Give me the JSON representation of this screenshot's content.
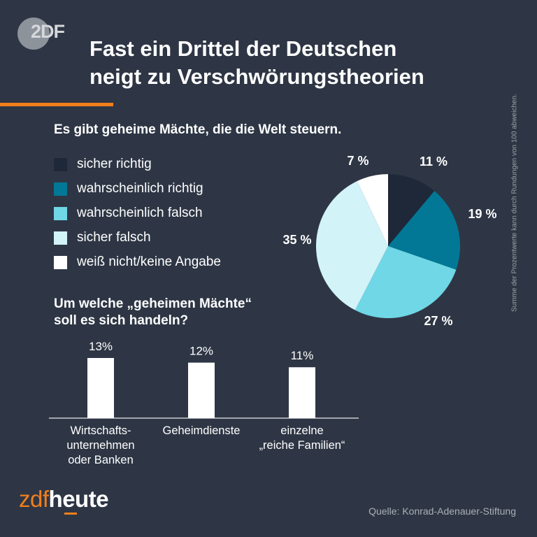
{
  "brand": {
    "logo_text": "2DF",
    "name_prefix": "zdf",
    "name_suffix": "heute",
    "accent": "#f07f1c"
  },
  "title_line1": "Fast ein Drittel der Deutschen",
  "title_line2": "neigt zu Verschwörungstheorien",
  "note": "Summe der Prozentwerte kann durch Rundungen von 100 abweichen.",
  "source": "Quelle: Konrad-Adenauer-Stiftung",
  "chart_data": [
    {
      "type": "pie",
      "title": "Es gibt geheime Mächte, die die Welt steuern.",
      "categories": [
        "sicher richtig",
        "wahrscheinlich richtig",
        "wahrscheinlich falsch",
        "sicher falsch",
        "weiß nicht/keine Angabe"
      ],
      "values": [
        11,
        19,
        27,
        35,
        7
      ],
      "labels": [
        "11 %",
        "19 %",
        "27 %",
        "35 %",
        "7 %"
      ],
      "colors": [
        "#1e2838",
        "#027896",
        "#6fd7e6",
        "#d2f3f8",
        "#ffffff"
      ],
      "legend": "left"
    },
    {
      "type": "bar",
      "title_line1": "Um welche „geheimen Mächte“",
      "title_line2": "soll es sich handeln?",
      "categories": [
        [
          "Wirtschafts-",
          "unternehmen",
          "oder Banken"
        ],
        [
          "Geheimdienste"
        ],
        [
          "einzelne",
          "„reiche Familien“"
        ]
      ],
      "values": [
        13,
        12,
        11
      ],
      "labels": [
        "13%",
        "12%",
        "11%"
      ],
      "color": "#ffffff"
    }
  ]
}
